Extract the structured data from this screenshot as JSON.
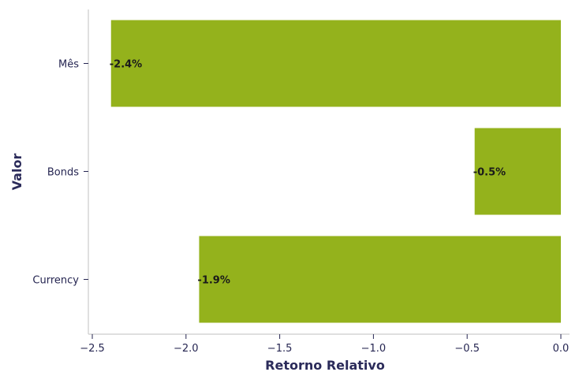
{
  "chart_data": {
    "type": "bar",
    "orientation": "horizontal",
    "categories": [
      "Mês",
      "Bonds",
      "Currency"
    ],
    "values": [
      -2.4,
      -0.46,
      -1.93
    ],
    "data_labels": [
      "-2.4%",
      "-0.5%",
      "-1.9%"
    ],
    "xlabel": "Retorno Relativo",
    "ylabel": "Valor",
    "xlim": [
      -2.5,
      0.0
    ],
    "xticks": [
      -2.5,
      -2.0,
      -1.5,
      -1.0,
      -0.5,
      0.0
    ],
    "xtick_labels": [
      "−2.5",
      "−2.0",
      "−1.5",
      "−1.0",
      "−0.5",
      "0.0"
    ],
    "grid": false,
    "legend": "none",
    "bar_color": "#94b21c",
    "axis_color": "#cccccc",
    "text_color": "#262652"
  }
}
